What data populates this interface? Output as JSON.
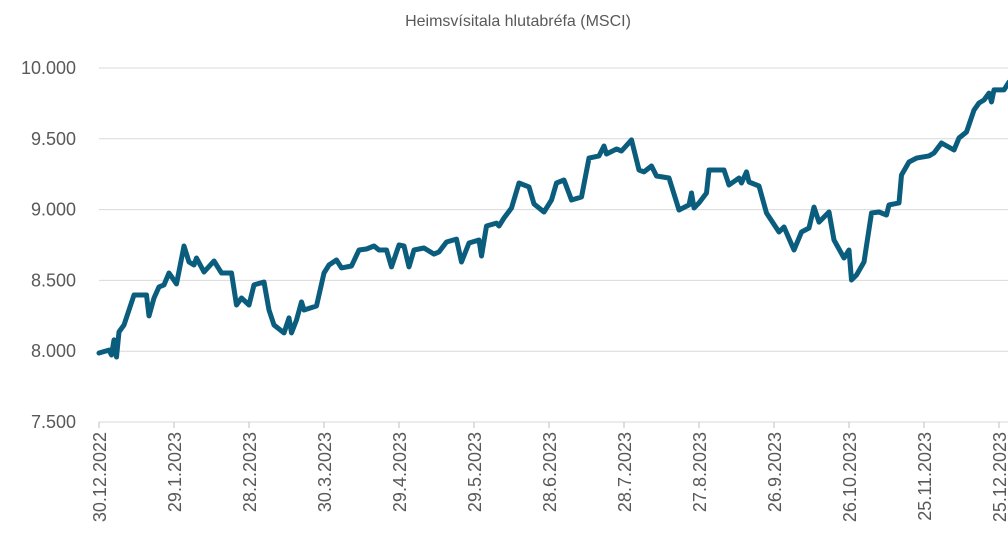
{
  "chart_data": {
    "type": "line",
    "title": "Heimsvísitala hlutabréfa (MSCI)",
    "x": [
      "2022-12-30",
      "2023-01-03",
      "2023-01-04",
      "2023-01-05",
      "2023-01-06",
      "2023-01-07",
      "2023-01-09",
      "2023-01-13",
      "2023-01-18",
      "2023-01-19",
      "2023-01-21",
      "2023-01-23",
      "2023-01-25",
      "2023-01-27",
      "2023-01-30",
      "2023-02-02",
      "2023-02-04",
      "2023-02-06",
      "2023-02-07",
      "2023-02-10",
      "2023-02-14",
      "2023-02-17",
      "2023-02-21",
      "2023-02-23",
      "2023-02-25",
      "2023-02-28",
      "2023-03-02",
      "2023-03-06",
      "2023-03-08",
      "2023-03-10",
      "2023-03-14",
      "2023-03-16",
      "2023-03-17",
      "2023-03-19",
      "2023-03-21",
      "2023-03-22",
      "2023-03-27",
      "2023-03-30",
      "2023-04-01",
      "2023-04-04",
      "2023-04-06",
      "2023-04-10",
      "2023-04-13",
      "2023-04-16",
      "2023-04-19",
      "2023-04-21",
      "2023-04-24",
      "2023-04-26",
      "2023-04-29",
      "2023-05-01",
      "2023-05-03",
      "2023-05-05",
      "2023-05-09",
      "2023-05-13",
      "2023-05-15",
      "2023-05-18",
      "2023-05-22",
      "2023-05-24",
      "2023-05-27",
      "2023-05-31",
      "2023-06-01",
      "2023-06-03",
      "2023-06-07",
      "2023-06-08",
      "2023-06-10",
      "2023-06-13",
      "2023-06-16",
      "2023-06-20",
      "2023-06-22",
      "2023-06-26",
      "2023-06-29",
      "2023-07-01",
      "2023-07-04",
      "2023-07-07",
      "2023-07-11",
      "2023-07-14",
      "2023-07-18",
      "2023-07-20",
      "2023-07-21",
      "2023-07-25",
      "2023-07-27",
      "2023-07-31",
      "2023-08-03",
      "2023-08-05",
      "2023-08-08",
      "2023-08-10",
      "2023-08-15",
      "2023-08-19",
      "2023-08-23",
      "2023-08-24",
      "2023-08-25",
      "2023-08-27",
      "2023-08-30",
      "2023-08-31",
      "2023-09-06",
      "2023-09-08",
      "2023-09-12",
      "2023-09-13",
      "2023-09-15",
      "2023-09-16",
      "2023-09-20",
      "2023-09-23",
      "2023-09-28",
      "2023-09-30",
      "2023-10-04",
      "2023-10-07",
      "2023-10-10",
      "2023-10-12",
      "2023-10-14",
      "2023-10-18",
      "2023-10-20",
      "2023-10-24",
      "2023-10-26",
      "2023-10-27",
      "2023-10-29",
      "2023-11-01",
      "2023-11-04",
      "2023-11-07",
      "2023-11-10",
      "2023-11-11",
      "2023-11-15",
      "2023-11-16",
      "2023-11-19",
      "2023-11-22",
      "2023-11-27",
      "2023-11-29",
      "2023-12-02",
      "2023-12-07",
      "2023-12-09",
      "2023-12-12",
      "2023-12-15",
      "2023-12-17",
      "2023-12-19",
      "2023-12-21",
      "2023-12-22",
      "2023-12-23",
      "2023-12-27",
      "2023-12-29"
    ],
    "series": [
      {
        "color": "#0b5d7e",
        "values": [
          7987,
          8008,
          7973,
          8080,
          7959,
          8136,
          8185,
          8397,
          8397,
          8249,
          8376,
          8454,
          8468,
          8552,
          8475,
          8743,
          8630,
          8609,
          8658,
          8559,
          8637,
          8552,
          8552,
          8326,
          8376,
          8326,
          8468,
          8489,
          8291,
          8185,
          8129,
          8235,
          8129,
          8220,
          8348,
          8291,
          8319,
          8552,
          8609,
          8644,
          8588,
          8602,
          8715,
          8722,
          8743,
          8715,
          8715,
          8595,
          8750,
          8743,
          8595,
          8715,
          8729,
          8686,
          8701,
          8771,
          8792,
          8630,
          8764,
          8785,
          8672,
          8884,
          8905,
          8884,
          8941,
          9011,
          9188,
          9160,
          9040,
          8983,
          9068,
          9188,
          9209,
          9068,
          9089,
          9364,
          9379,
          9449,
          9393,
          9428,
          9414,
          9492,
          9280,
          9266,
          9308,
          9237,
          9223,
          8997,
          9033,
          9117,
          9011,
          9047,
          9117,
          9280,
          9280,
          9174,
          9223,
          9188,
          9266,
          9195,
          9167,
          8976,
          8842,
          8877,
          8715,
          8842,
          8870,
          9018,
          8912,
          8983,
          8785,
          8658,
          8715,
          8503,
          8538,
          8630,
          8976,
          8983,
          8962,
          9033,
          9047,
          9244,
          9336,
          9364,
          9379,
          9400,
          9470,
          9421,
          9506,
          9548,
          9703,
          9753,
          9774,
          9823,
          9760,
          9845,
          9845,
          9901
        ]
      }
    ],
    "xlim": [
      "2022-12-30",
      "2023-12-29"
    ],
    "xticks": [
      {
        "value": "2022-12-30",
        "label": "30.12.2022"
      },
      {
        "value": "2023-01-29",
        "label": "29.1.2023"
      },
      {
        "value": "2023-02-28",
        "label": "28.2.2023"
      },
      {
        "value": "2023-03-30",
        "label": "30.3.2023"
      },
      {
        "value": "2023-04-29",
        "label": "29.4.2023"
      },
      {
        "value": "2023-05-29",
        "label": "29.5.2023"
      },
      {
        "value": "2023-06-28",
        "label": "28.6.2023"
      },
      {
        "value": "2023-07-28",
        "label": "28.7.2023"
      },
      {
        "value": "2023-08-27",
        "label": "27.8.2023"
      },
      {
        "value": "2023-09-26",
        "label": "26.9.2023"
      },
      {
        "value": "2023-10-26",
        "label": "26.10.2023"
      },
      {
        "value": "2023-11-25",
        "label": "25.11.2023"
      },
      {
        "value": "2023-12-25",
        "label": "25.12.2023"
      }
    ],
    "ylim": [
      7500,
      10000
    ],
    "yticks": [
      {
        "value": 7500,
        "label": "7.500"
      },
      {
        "value": 8000,
        "label": "8.000"
      },
      {
        "value": 8500,
        "label": "8.500"
      },
      {
        "value": 9000,
        "label": "9.000"
      },
      {
        "value": 9500,
        "label": "9.500"
      },
      {
        "value": 10000,
        "label": "10.000"
      }
    ],
    "grid": true
  }
}
